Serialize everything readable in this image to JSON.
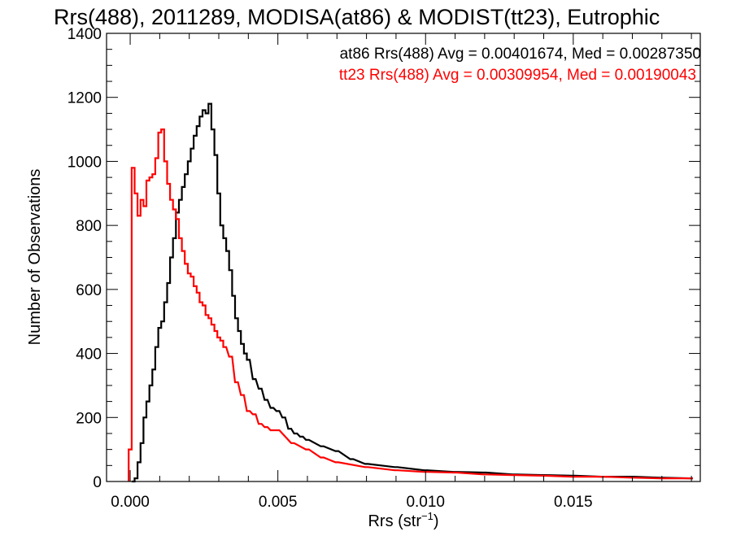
{
  "chart_data": {
    "type": "histogram",
    "title": "Rrs(488), 2011289, MODISA(at86) & MODIST(tt23), Eutrophic",
    "xlabel": "Rrs (str",
    "xlabel_sup": "−1",
    "xlabel_end": ")",
    "ylabel": "Number of Observations",
    "xlim": [
      -0.0008,
      0.0193
    ],
    "ylim": [
      0,
      1400
    ],
    "xticks": [
      0.0,
      0.005,
      0.01,
      0.015
    ],
    "xtick_labels": [
      "0.000",
      "0.005",
      "0.010",
      "0.015"
    ],
    "yticks": [
      0,
      200,
      400,
      600,
      800,
      1000,
      1200,
      1400
    ],
    "ytick_labels": [
      "0",
      "200",
      "400",
      "600",
      "800",
      "1000",
      "1200",
      "1400"
    ],
    "legend": [
      {
        "text": "at86 Rrs(488) Avg = 0.00401674, Med = 0.00287350",
        "color": "#000000"
      },
      {
        "text": "tt23 Rrs(488) Avg = 0.00309954, Med = 0.00190043",
        "color": "#ff0000"
      }
    ],
    "series": [
      {
        "color": "#000000",
        "x": [
          0.0001,
          0.0002,
          0.0003,
          0.0004,
          0.0005,
          0.0006,
          0.0007,
          0.0008,
          0.0009,
          0.001,
          0.0011,
          0.0012,
          0.0013,
          0.0014,
          0.0015,
          0.0016,
          0.0017,
          0.0018,
          0.0019,
          0.002,
          0.0021,
          0.0022,
          0.0023,
          0.0024,
          0.0025,
          0.0026,
          0.0027,
          0.0028,
          0.0029,
          0.003,
          0.0031,
          0.0032,
          0.0033,
          0.0034,
          0.0035,
          0.0036,
          0.0037,
          0.0038,
          0.0039,
          0.004,
          0.0042,
          0.0044,
          0.0046,
          0.0048,
          0.005,
          0.0052,
          0.0054,
          0.0056,
          0.0058,
          0.006,
          0.0065,
          0.007,
          0.0075,
          0.008,
          0.009,
          0.01,
          0.011,
          0.012,
          0.013,
          0.014,
          0.015,
          0.016,
          0.017,
          0.018,
          0.019
        ],
        "values": [
          0,
          10,
          60,
          120,
          200,
          250,
          300,
          350,
          420,
          480,
          500,
          560,
          620,
          700,
          760,
          840,
          880,
          920,
          960,
          1000,
          1040,
          1080,
          1110,
          1140,
          1160,
          1150,
          1180,
          1100,
          1020,
          900,
          800,
          760,
          720,
          660,
          580,
          510,
          470,
          430,
          400,
          380,
          320,
          290,
          255,
          230,
          220,
          200,
          165,
          150,
          140,
          130,
          110,
          95,
          70,
          55,
          45,
          35,
          30,
          28,
          22,
          20,
          18,
          15,
          15,
          12,
          10
        ]
      },
      {
        "color": "#ff0000",
        "x": [
          0.0,
          0.0001,
          0.0002,
          0.0003,
          0.0004,
          0.0005,
          0.0006,
          0.0007,
          0.0008,
          0.0009,
          0.001,
          0.0011,
          0.0012,
          0.0013,
          0.0014,
          0.0015,
          0.0016,
          0.0017,
          0.0018,
          0.0019,
          0.002,
          0.0021,
          0.0022,
          0.0023,
          0.0024,
          0.0025,
          0.0026,
          0.0027,
          0.0028,
          0.0029,
          0.003,
          0.0031,
          0.0032,
          0.0034,
          0.0036,
          0.0038,
          0.004,
          0.0042,
          0.0044,
          0.0046,
          0.0048,
          0.005,
          0.0055,
          0.006,
          0.0065,
          0.007,
          0.008,
          0.009,
          0.01,
          0.011,
          0.012,
          0.013,
          0.014,
          0.015,
          0.016,
          0.017,
          0.018,
          0.019
        ],
        "values": [
          100,
          980,
          900,
          830,
          880,
          860,
          940,
          950,
          960,
          1010,
          1090,
          1100,
          1000,
          930,
          880,
          850,
          820,
          760,
          720,
          680,
          650,
          640,
          610,
          590,
          560,
          550,
          520,
          510,
          490,
          470,
          450,
          440,
          420,
          390,
          310,
          270,
          220,
          210,
          180,
          170,
          160,
          160,
          120,
          100,
          75,
          60,
          45,
          35,
          30,
          28,
          22,
          20,
          18,
          15,
          15,
          12,
          10,
          10
        ]
      }
    ]
  }
}
